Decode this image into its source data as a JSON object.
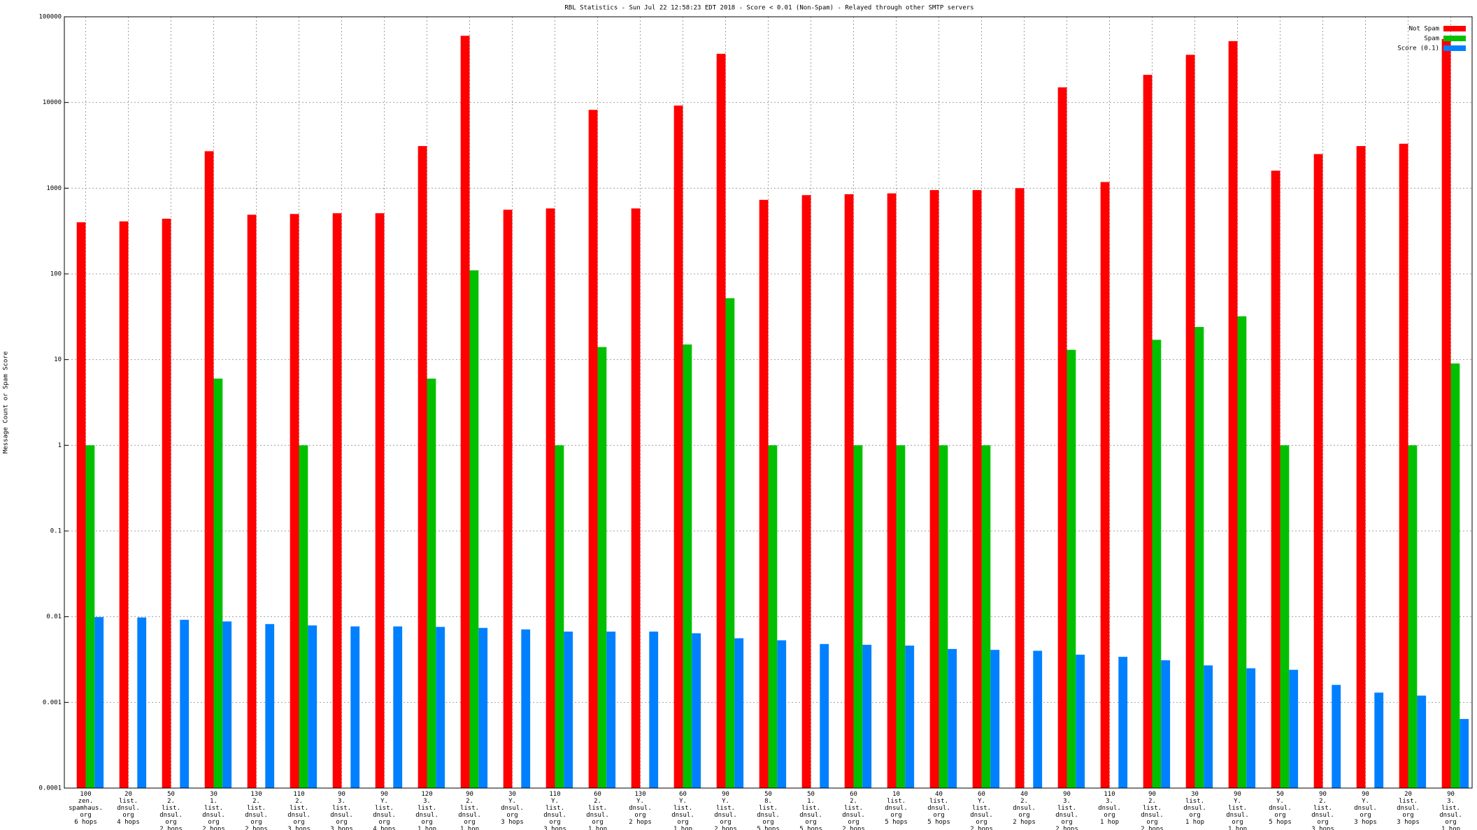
{
  "chart_data": {
    "type": "bar",
    "title": "RBL Statistics - Sun Jul 22 12:58:23 EDT 2018 - Score < 0.01 (Non-Spam) - Relayed through other SMTP servers",
    "y_label": "Message Count or Spam Score",
    "categories": [
      "100\nzen.\nspamhaus.\norg\n6 hops",
      "20\nlist.\ndnsul.\norg\n4 hops",
      "50\n2.\nlist.\ndnsul.\norg\n2 hops",
      "30\n1.\nlist.\ndnsul.\norg\n2 hops",
      "130\n2.\nlist.\ndnsul.\norg\n2 hops",
      "110\n2.\nlist.\ndnsul.\norg\n3 hops",
      "90\n3.\nlist.\ndnsul.\norg\n3 hops",
      "90\nY.\nlist.\ndnsul.\norg\n4 hops",
      "120\n3.\nlist.\ndnsul.\norg\n1 hop",
      "90\n2.\nlist.\ndnsul.\norg\n1 hop",
      "30\nY.\ndnsul.\norg\n3 hops",
      "110\nY.\nlist.\ndnsul.\norg\n3 hops",
      "60\n2.\nlist.\ndnsul.\norg\n1 hop",
      "130\nY.\ndnsul.\norg\n2 hops",
      "60\nY.\nlist.\ndnsul.\norg\n1 hop",
      "90\nY.\nlist.\ndnsul.\norg\n2 hops",
      "50\n8.\nlist.\ndnsul.\norg\n5 hops",
      "50\n1.\nlist.\ndnsul.\norg\n5 hops",
      "60\n2.\nlist.\ndnsul.\norg\n2 hops",
      "10\nlist.\ndnsul.\norg\n5 hops",
      "40\nlist.\ndnsul.\norg\n5 hops",
      "60\nY.\nlist.\ndnsul.\norg\n2 hops",
      "40\n2.\ndnsul.\norg\n2 hops",
      "90\n3.\nlist.\ndnsul.\norg\n2 hops",
      "110\n3.\ndnsul.\norg\n1 hop",
      "90\n2.\nlist.\ndnsul.\norg\n2 hops",
      "30\nlist.\ndnsul.\norg\n1 hop",
      "90\nY.\nlist.\ndnsul.\norg\n1 hop",
      "50\nY.\ndnsul.\norg\n5 hops",
      "90\n2.\nlist.\ndnsul.\norg\n3 hops",
      "90\nY.\ndnsul.\norg\n3 hops",
      "20\nlist.\ndnsul.\norg\n3 hops",
      "90\n3.\nlist.\ndnsul.\norg\n1 hop"
    ],
    "series": [
      {
        "name": "Not Spam",
        "color": "#ff0000",
        "values": [
          400,
          410,
          440,
          2700,
          490,
          500,
          510,
          510,
          3100,
          60000,
          560,
          580,
          8200,
          580,
          9200,
          37000,
          730,
          830,
          850,
          870,
          950,
          950,
          1000,
          15000,
          1180,
          21000,
          36000,
          52000,
          1600,
          2500,
          3100,
          3300,
          55000
        ]
      },
      {
        "name": "Spam",
        "color": "#00c000",
        "values": [
          1,
          null,
          null,
          6,
          null,
          1,
          null,
          null,
          6,
          110,
          null,
          1,
          14,
          null,
          15,
          52,
          1,
          null,
          1,
          1,
          1,
          1,
          null,
          13,
          null,
          17,
          24,
          32,
          1,
          null,
          null,
          1,
          9
        ]
      },
      {
        "name": "Score (0.1)",
        "color": "#0080ff",
        "values": [
          0.0099,
          0.0098,
          0.0092,
          0.0088,
          0.0082,
          0.0079,
          0.0077,
          0.0077,
          0.0076,
          0.0074,
          0.0071,
          0.0067,
          0.0067,
          0.0067,
          0.0064,
          0.0056,
          0.0053,
          0.0048,
          0.0047,
          0.0046,
          0.0042,
          0.0041,
          0.004,
          0.0036,
          0.0034,
          0.0031,
          0.0027,
          0.0025,
          0.0024,
          0.0016,
          0.0013,
          0.0012,
          0.00064
        ]
      }
    ],
    "log_y": true,
    "ylim": [
      0.0001,
      100000
    ],
    "yticks": [
      0.0001,
      0.001,
      0.01,
      0.1,
      1,
      10,
      100,
      1000,
      10000,
      100000
    ],
    "grid": true,
    "legend": "top-right"
  }
}
